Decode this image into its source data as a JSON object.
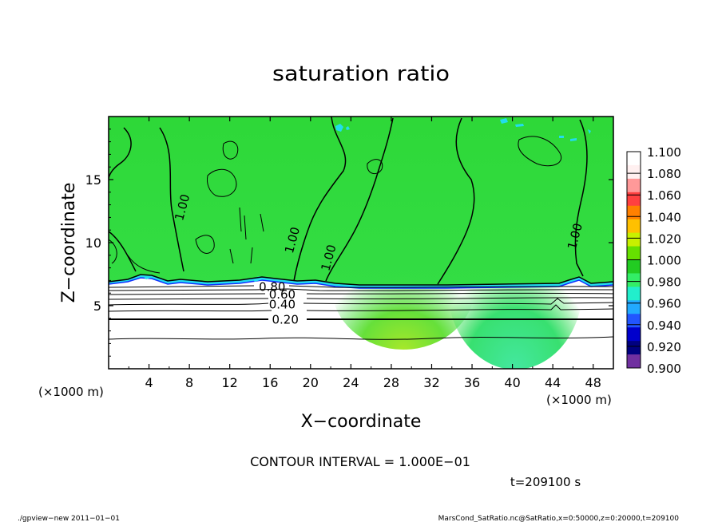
{
  "chart_data": {
    "type": "heatmap",
    "title": "saturation ratio",
    "xlabel": "X−coordinate",
    "ylabel": "Z−coordinate",
    "x_unit_left": "(×1000 m)",
    "x_unit_right": "(×1000 m)",
    "xlim": [
      0,
      50
    ],
    "ylim": [
      0,
      20
    ],
    "x_ticks": [
      4,
      8,
      12,
      16,
      20,
      24,
      28,
      32,
      36,
      40,
      44,
      48
    ],
    "x_tick_labels": [
      "4",
      "8",
      "12",
      "16",
      "20",
      "24",
      "28",
      "32",
      "36",
      "40",
      "44",
      "48"
    ],
    "y_ticks": [
      5,
      10,
      15
    ],
    "y_tick_labels": [
      "5",
      "10",
      "15"
    ],
    "colorbar": {
      "min": 0.9,
      "max": 1.1,
      "labels": [
        "1.100",
        "1.080",
        "1.060",
        "1.040",
        "1.020",
        "1.000",
        "0.980",
        "0.960",
        "0.940",
        "0.920",
        "0.900"
      ],
      "colors": [
        "#ffffff",
        "#fff0f0",
        "#ff9999",
        "#ff4040",
        "#ff8000",
        "#ffc000",
        "#c8f000",
        "#66e000",
        "#22cc22",
        "#33ee66",
        "#22eecc",
        "#22aaff",
        "#2255ff",
        "#0000cc",
        "#000080",
        "#7030a0"
      ]
    },
    "contour_labels": [
      {
        "text": "0.20",
        "x": 17.5,
        "z": 3.9
      },
      {
        "text": "0.40",
        "x": 17.2,
        "z": 5.1
      },
      {
        "text": "0.60",
        "x": 17.2,
        "z": 5.9
      },
      {
        "text": "0.80",
        "x": 16.2,
        "z": 6.5
      },
      {
        "text": "1.00",
        "x": 7.3,
        "z": 12.8
      },
      {
        "text": "1.00",
        "x": 18.2,
        "z": 10.2
      },
      {
        "text": "1.00",
        "x": 21.8,
        "z": 8.8
      },
      {
        "text": "1.00",
        "x": 46.2,
        "z": 10.5
      }
    ],
    "contour_interval_text": "CONTOUR INTERVAL = 1.000E−01",
    "time_text": "t=209100 s"
  },
  "footer": {
    "left": "./gpview−new   2011−01−01",
    "right": "MarsCond_SatRatio.nc@SatRatio,x=0:50000,z=0:20000,t=209100"
  }
}
